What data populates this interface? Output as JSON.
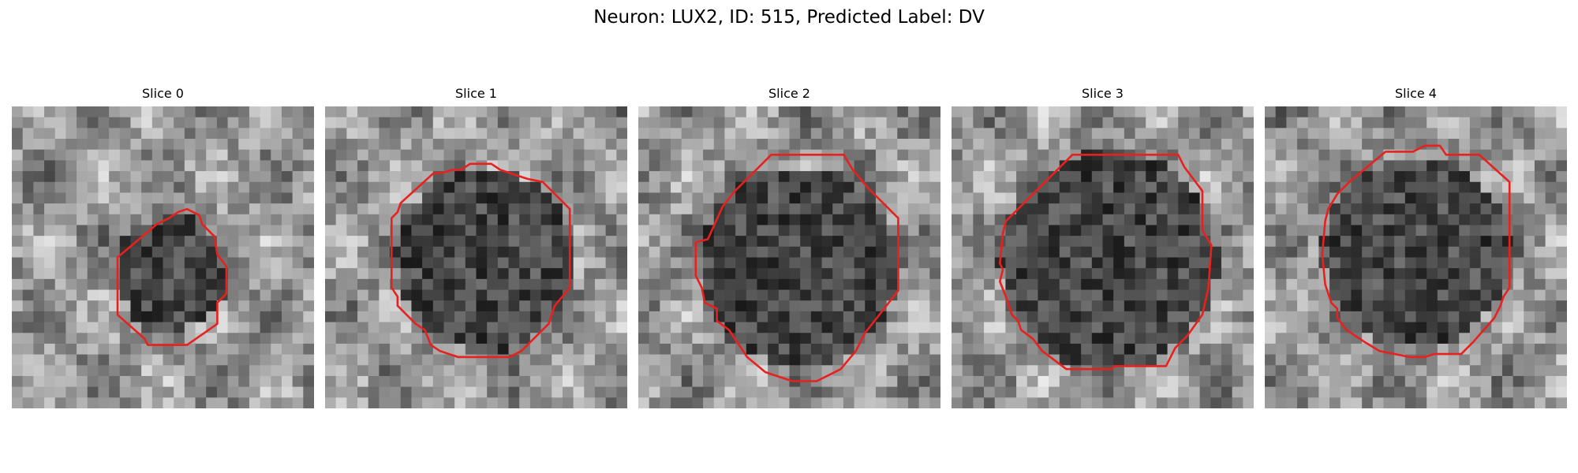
{
  "figure": {
    "title": "Neuron: LUX2, ID: 515, Predicted Label: DV"
  },
  "contour_color": "#e8201e",
  "panels": [
    {
      "title": "Slice 0",
      "contour": [
        [
          0.62,
          0.36
        ],
        [
          0.58,
          0.34
        ],
        [
          0.55,
          0.35
        ],
        [
          0.52,
          0.37
        ],
        [
          0.48,
          0.39
        ],
        [
          0.35,
          0.5
        ],
        [
          0.35,
          0.69
        ],
        [
          0.44,
          0.77
        ],
        [
          0.45,
          0.79
        ],
        [
          0.58,
          0.79
        ],
        [
          0.68,
          0.72
        ],
        [
          0.68,
          0.65
        ],
        [
          0.71,
          0.62
        ],
        [
          0.71,
          0.53
        ],
        [
          0.68,
          0.49
        ],
        [
          0.67,
          0.43
        ],
        [
          0.63,
          0.39
        ]
      ]
    },
    {
      "title": "Slice 1",
      "contour": [
        [
          0.52,
          0.19
        ],
        [
          0.48,
          0.19
        ],
        [
          0.45,
          0.21
        ],
        [
          0.42,
          0.21
        ],
        [
          0.39,
          0.22
        ],
        [
          0.36,
          0.22
        ],
        [
          0.25,
          0.32
        ],
        [
          0.24,
          0.35
        ],
        [
          0.22,
          0.37
        ],
        [
          0.22,
          0.6
        ],
        [
          0.24,
          0.63
        ],
        [
          0.24,
          0.66
        ],
        [
          0.27,
          0.69
        ],
        [
          0.3,
          0.72
        ],
        [
          0.33,
          0.74
        ],
        [
          0.35,
          0.79
        ],
        [
          0.38,
          0.81
        ],
        [
          0.44,
          0.83
        ],
        [
          0.61,
          0.83
        ],
        [
          0.65,
          0.81
        ],
        [
          0.68,
          0.78
        ],
        [
          0.74,
          0.72
        ],
        [
          0.76,
          0.66
        ],
        [
          0.81,
          0.6
        ],
        [
          0.81,
          0.34
        ],
        [
          0.75,
          0.28
        ],
        [
          0.72,
          0.25
        ],
        [
          0.67,
          0.24
        ],
        [
          0.64,
          0.23
        ],
        [
          0.58,
          0.21
        ],
        [
          0.55,
          0.19
        ]
      ]
    },
    {
      "title": "Slice 2",
      "contour": [
        [
          0.44,
          0.16
        ],
        [
          0.32,
          0.28
        ],
        [
          0.28,
          0.33
        ],
        [
          0.23,
          0.44
        ],
        [
          0.19,
          0.45
        ],
        [
          0.19,
          0.56
        ],
        [
          0.21,
          0.6
        ],
        [
          0.22,
          0.65
        ],
        [
          0.26,
          0.67
        ],
        [
          0.26,
          0.71
        ],
        [
          0.3,
          0.74
        ],
        [
          0.36,
          0.83
        ],
        [
          0.42,
          0.88
        ],
        [
          0.45,
          0.89
        ],
        [
          0.51,
          0.91
        ],
        [
          0.59,
          0.91
        ],
        [
          0.63,
          0.89
        ],
        [
          0.67,
          0.87
        ],
        [
          0.72,
          0.81
        ],
        [
          0.75,
          0.75
        ],
        [
          0.79,
          0.7
        ],
        [
          0.86,
          0.61
        ],
        [
          0.86,
          0.37
        ],
        [
          0.76,
          0.27
        ],
        [
          0.71,
          0.21
        ],
        [
          0.68,
          0.16
        ]
      ]
    },
    {
      "title": "Slice 3",
      "contour": [
        [
          0.4,
          0.16
        ],
        [
          0.18,
          0.38
        ],
        [
          0.17,
          0.42
        ],
        [
          0.16,
          0.52
        ],
        [
          0.17,
          0.54
        ],
        [
          0.16,
          0.58
        ],
        [
          0.18,
          0.63
        ],
        [
          0.2,
          0.69
        ],
        [
          0.22,
          0.71
        ],
        [
          0.23,
          0.74
        ],
        [
          0.27,
          0.77
        ],
        [
          0.3,
          0.81
        ],
        [
          0.38,
          0.87
        ],
        [
          0.53,
          0.87
        ],
        [
          0.54,
          0.86
        ],
        [
          0.71,
          0.86
        ],
        [
          0.74,
          0.8
        ],
        [
          0.78,
          0.76
        ],
        [
          0.83,
          0.69
        ],
        [
          0.85,
          0.6
        ],
        [
          0.86,
          0.46
        ],
        [
          0.83,
          0.41
        ],
        [
          0.83,
          0.28
        ],
        [
          0.77,
          0.2
        ],
        [
          0.75,
          0.16
        ]
      ]
    },
    {
      "title": "Slice 4",
      "contour": [
        [
          0.58,
          0.13
        ],
        [
          0.53,
          0.13
        ],
        [
          0.49,
          0.15
        ],
        [
          0.4,
          0.15
        ],
        [
          0.28,
          0.25
        ],
        [
          0.24,
          0.29
        ],
        [
          0.21,
          0.34
        ],
        [
          0.2,
          0.38
        ],
        [
          0.19,
          0.49
        ],
        [
          0.2,
          0.59
        ],
        [
          0.22,
          0.65
        ],
        [
          0.24,
          0.67
        ],
        [
          0.24,
          0.7
        ],
        [
          0.27,
          0.74
        ],
        [
          0.33,
          0.78
        ],
        [
          0.38,
          0.81
        ],
        [
          0.43,
          0.82
        ],
        [
          0.48,
          0.83
        ],
        [
          0.53,
          0.83
        ],
        [
          0.56,
          0.82
        ],
        [
          0.65,
          0.82
        ],
        [
          0.69,
          0.78
        ],
        [
          0.76,
          0.7
        ],
        [
          0.78,
          0.66
        ],
        [
          0.79,
          0.63
        ],
        [
          0.81,
          0.6
        ],
        [
          0.81,
          0.25
        ],
        [
          0.71,
          0.16
        ],
        [
          0.6,
          0.16
        ]
      ]
    }
  ]
}
